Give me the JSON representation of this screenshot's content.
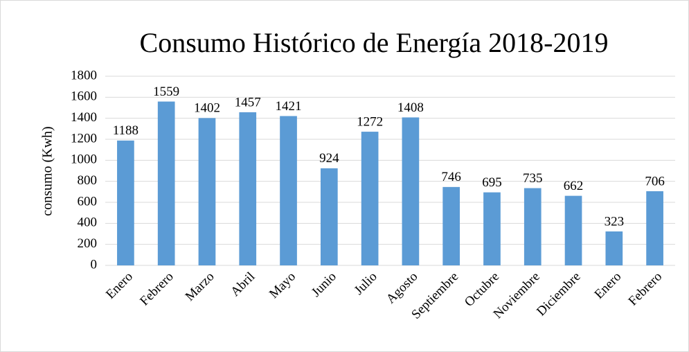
{
  "chart_data": {
    "type": "bar",
    "title": "Consumo Histórico de Energía  2018-2019",
    "y_label": "consumo (Kwh)",
    "categories": [
      "Enero",
      "Febrero",
      "Marzo",
      "Abril",
      "Mayo",
      "Junio",
      "Julio",
      "Agosto",
      "Septiembre",
      "Octubre",
      "Noviembre",
      "Diciembre",
      "Enero",
      "Febrero"
    ],
    "values": [
      1188,
      1559,
      1402,
      1457,
      1421,
      924,
      1272,
      1408,
      746,
      695,
      735,
      662,
      323,
      706
    ],
    "color": "#5b9bd5",
    "ylim": [
      0,
      1800
    ],
    "yticks": [
      0,
      200,
      400,
      600,
      800,
      1000,
      1200,
      1400,
      1600,
      1800
    ],
    "grid": true,
    "data_labels": true
  }
}
